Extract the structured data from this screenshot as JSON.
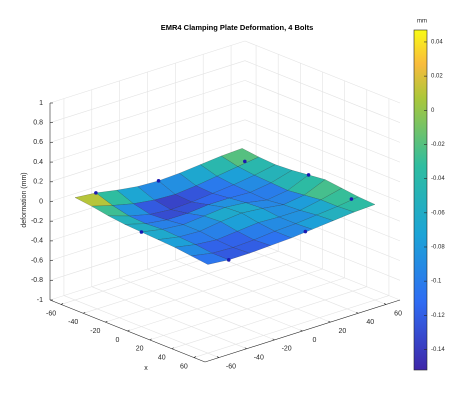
{
  "chart_data": {
    "type": "surface",
    "title": "EMR4 Clamping Plate Deformation, 4 Bolts",
    "xlabel": "x",
    "zlabel": "deformation (mm)",
    "colorbar_label": "mm",
    "x": [
      -60,
      -45,
      -30,
      -15,
      0,
      15,
      30,
      45,
      60
    ],
    "y": [
      -60,
      -45,
      -30,
      -15,
      0,
      15,
      30,
      45,
      60
    ],
    "z": [
      [
        0.04,
        0.02,
        -0.02,
        -0.05,
        -0.06,
        -0.05,
        -0.03,
        -0.01,
        0.0
      ],
      [
        0.02,
        -0.04,
        -0.09,
        -0.12,
        -0.13,
        -0.11,
        -0.08,
        -0.05,
        -0.02
      ],
      [
        -0.01,
        -0.08,
        -0.13,
        -0.15,
        -0.14,
        -0.12,
        -0.1,
        -0.07,
        -0.03
      ],
      [
        -0.03,
        -0.09,
        -0.12,
        -0.12,
        -0.1,
        -0.1,
        -0.11,
        -0.08,
        -0.02
      ],
      [
        -0.04,
        -0.08,
        -0.1,
        -0.08,
        -0.06,
        -0.08,
        -0.12,
        -0.09,
        0.0
      ],
      [
        -0.05,
        -0.09,
        -0.1,
        -0.07,
        -0.05,
        -0.07,
        -0.1,
        -0.07,
        0.02
      ],
      [
        -0.06,
        -0.1,
        -0.12,
        -0.1,
        -0.08,
        -0.09,
        -0.09,
        -0.05,
        0.0
      ],
      [
        -0.08,
        -0.12,
        -0.13,
        -0.12,
        -0.1,
        -0.09,
        -0.07,
        -0.05,
        -0.02
      ],
      [
        -0.1,
        -0.12,
        -0.12,
        -0.11,
        -0.1,
        -0.08,
        -0.06,
        -0.04,
        -0.03
      ]
    ],
    "points": {
      "color": "#1a1ab0",
      "x": [
        -60,
        -60,
        -45,
        0,
        45,
        60,
        60,
        0
      ],
      "y": [
        -45,
        0,
        50,
        60,
        55,
        10,
        -45,
        -60
      ],
      "z": [
        0.02,
        -0.06,
        -0.02,
        0.0,
        -0.02,
        -0.08,
        -0.12,
        -0.04
      ]
    },
    "xlim": [
      -70,
      70
    ],
    "ylim": [
      -70,
      70
    ],
    "zlim": [
      -1,
      1
    ],
    "xticks": [
      -60,
      -40,
      -20,
      0,
      20,
      40,
      60
    ],
    "yticks": [
      -60,
      -40,
      -20,
      0,
      20,
      40,
      60
    ],
    "zticks": [
      1,
      0.8,
      0.6,
      0.4,
      0.2,
      0,
      -0.2,
      -0.4,
      -0.6,
      -0.8,
      -1
    ],
    "clim": [
      -0.152,
      0.047
    ],
    "cticks": [
      0.04,
      0.02,
      0,
      -0.02,
      -0.04,
      -0.06,
      -0.08,
      -0.1,
      -0.12,
      -0.14
    ],
    "grid": true
  }
}
